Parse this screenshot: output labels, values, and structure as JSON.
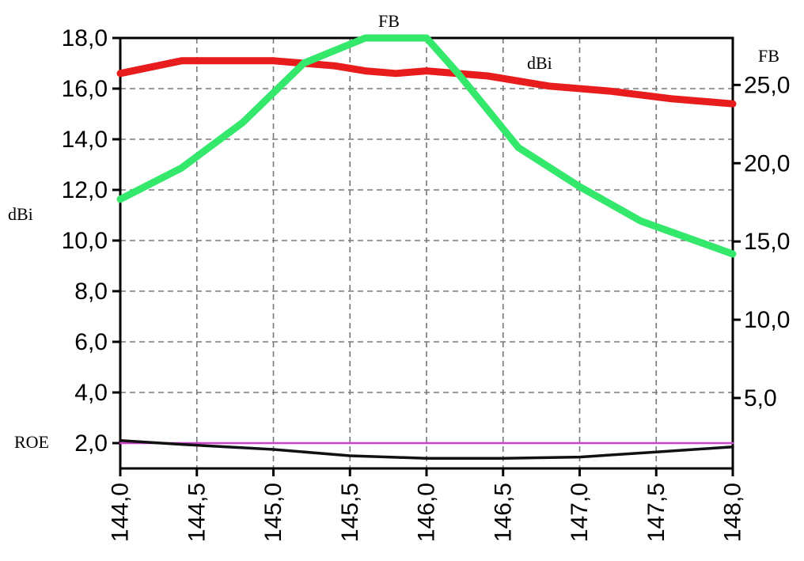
{
  "chart_data": {
    "type": "line",
    "x_tick_labels": [
      "144,0",
      "144,5",
      "145,0",
      "145,5",
      "146,0",
      "146,5",
      "147,0",
      "147,5",
      "148,0"
    ],
    "x_ticks": [
      144.0,
      144.5,
      145.0,
      145.5,
      146.0,
      146.5,
      147.0,
      147.5,
      148.0
    ],
    "xlim": [
      144.0,
      148.0
    ],
    "y_left": {
      "label": "dBi",
      "ylim": [
        1.0,
        18.0
      ],
      "ticks": [
        2,
        4,
        6,
        8,
        10,
        12,
        14,
        16,
        18
      ],
      "tick_labels": [
        "2,0",
        "4,0",
        "6,0",
        "8,0",
        "10,0",
        "12,0",
        "14,0",
        "16,0",
        "18,0"
      ]
    },
    "y_right": {
      "label": "FB",
      "ylim": [
        0.5,
        28.0
      ],
      "ticks": [
        5,
        10,
        15,
        20,
        25
      ],
      "tick_labels": [
        "5,0",
        "10,0",
        "15,0",
        "20,0",
        "25,0"
      ]
    },
    "roe_label": "ROE",
    "grid": true,
    "series": [
      {
        "name": "dBi",
        "axis": "left",
        "color": "#e81c1c",
        "x": [
          144.0,
          144.4,
          145.0,
          145.4,
          145.6,
          145.8,
          146.0,
          146.4,
          146.8,
          147.2,
          147.6,
          148.0
        ],
        "values": [
          16.6,
          17.1,
          17.1,
          16.9,
          16.7,
          16.6,
          16.7,
          16.5,
          16.1,
          15.9,
          15.6,
          15.4
        ]
      },
      {
        "name": "FB",
        "axis": "right",
        "color": "#33e86b",
        "x": [
          144.0,
          144.4,
          144.8,
          145.2,
          145.6,
          145.7,
          146.0,
          146.2,
          146.6,
          147.0,
          147.4,
          147.8,
          148.0
        ],
        "values": [
          17.7,
          19.7,
          22.6,
          26.4,
          28.0,
          28.0,
          28.0,
          25.8,
          21.0,
          18.5,
          16.3,
          14.9,
          14.2
        ]
      },
      {
        "name": "ROE",
        "axis": "left",
        "color": "#111111",
        "x": [
          144.0,
          144.4,
          145.0,
          145.5,
          146.0,
          146.5,
          147.0,
          147.5,
          148.0
        ],
        "values": [
          2.1,
          1.95,
          1.75,
          1.5,
          1.4,
          1.4,
          1.45,
          1.65,
          1.85
        ]
      },
      {
        "name": "ROE reference",
        "axis": "left",
        "color": "#cc44cc",
        "x": [
          144.0,
          148.0
        ],
        "values": [
          2.0,
          2.0
        ]
      }
    ]
  }
}
